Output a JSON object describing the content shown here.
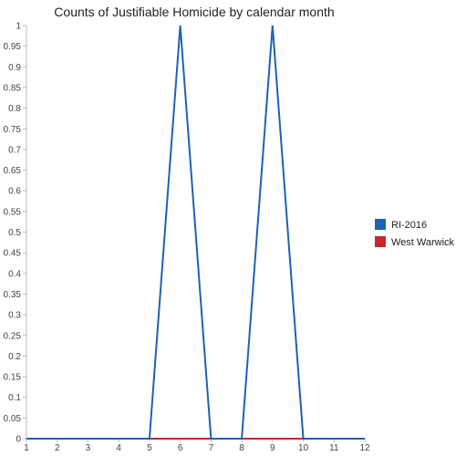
{
  "chart_data": {
    "type": "line",
    "title": "Counts of Justifiable Homicide by calendar month",
    "xlabel": "",
    "ylabel": "",
    "x": [
      1,
      2,
      3,
      4,
      5,
      6,
      7,
      8,
      9,
      10,
      11,
      12
    ],
    "x_tick_labels": [
      "1",
      "2",
      "3",
      "4",
      "5",
      "6",
      "7",
      "8",
      "9",
      "10",
      "11",
      "12"
    ],
    "ylim": [
      0,
      1
    ],
    "y_ticks": [
      0,
      0.05,
      0.1,
      0.15,
      0.2,
      0.25,
      0.3,
      0.35,
      0.4,
      0.45,
      0.5,
      0.55,
      0.6,
      0.65,
      0.7,
      0.75,
      0.8,
      0.85,
      0.9,
      0.95,
      1
    ],
    "y_tick_labels": [
      "0",
      "0.05",
      "0.1",
      "0.15",
      "0.2",
      "0.25",
      "0.3",
      "0.35",
      "0.4",
      "0.45",
      "0.5",
      "0.55",
      "0.6",
      "0.65",
      "0.7",
      "0.75",
      "0.8",
      "0.85",
      "0.9",
      "0.95",
      "1"
    ],
    "grid": false,
    "legend_position": "right",
    "series": [
      {
        "name": "RI-2016",
        "color": "#1f62b3",
        "values": [
          0,
          0,
          0,
          0,
          0,
          1,
          0,
          0,
          1,
          0,
          0,
          0
        ]
      },
      {
        "name": "West Warwick",
        "color": "#c7282b",
        "values": [
          0,
          0,
          0,
          0,
          0,
          0,
          0,
          0,
          0,
          0,
          0,
          0
        ]
      }
    ]
  }
}
